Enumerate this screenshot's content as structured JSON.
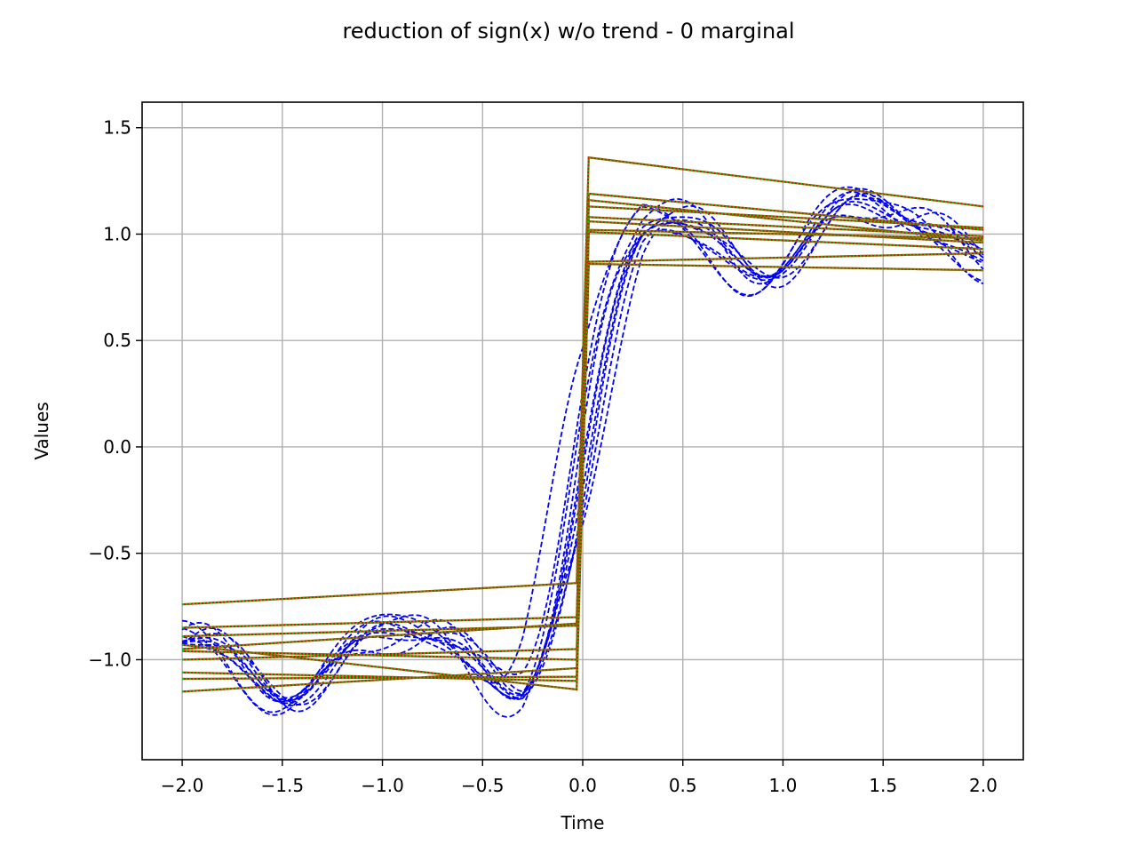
{
  "chart_data": {
    "type": "line",
    "title": "reduction of sign(x) w/o trend - 0 marginal",
    "xlabel": "Time",
    "ylabel": "Values",
    "xlim": [
      -2.2,
      2.2
    ],
    "ylim": [
      -1.47,
      1.62
    ],
    "xticks": [
      -2.0,
      -1.5,
      -1.0,
      -0.5,
      0.0,
      0.5,
      1.0,
      1.5,
      2.0
    ],
    "xtick_labels": [
      "−2.0",
      "−1.5",
      "−1.0",
      "−0.5",
      "0.0",
      "0.5",
      "1.0",
      "1.5",
      "2.0"
    ],
    "yticks": [
      -1.0,
      -0.5,
      0.0,
      0.5,
      1.0,
      1.5
    ],
    "ytick_labels": [
      "−1.0",
      "−0.5",
      "0.0",
      "0.5",
      "1.0",
      "1.5"
    ],
    "grid": true,
    "legend": "none",
    "colors": {
      "stochastic": "#0000ff",
      "reduced_base": "#ff0000",
      "reduced_overlay": "#00cc00",
      "grid": "#b0b0b0",
      "axes": "#000000"
    },
    "stochastic_series": [
      {
        "mid": 0.03,
        "k": 5.2,
        "a1": 0.18,
        "a2": 0.06,
        "p1": 0.0,
        "p2": 1.2
      },
      {
        "mid": 0.05,
        "k": 4.8,
        "a1": 0.22,
        "a2": 0.05,
        "p1": 0.3,
        "p2": 0.8
      },
      {
        "mid": -0.02,
        "k": 5.6,
        "a1": 0.2,
        "a2": 0.07,
        "p1": -0.2,
        "p2": 2.0
      },
      {
        "mid": 0.08,
        "k": 4.4,
        "a1": 0.25,
        "a2": 0.04,
        "p1": 0.15,
        "p2": 0.4
      },
      {
        "mid": 0.0,
        "k": 6.0,
        "a1": 0.15,
        "a2": 0.08,
        "p1": -0.35,
        "p2": 1.5
      },
      {
        "mid": 0.1,
        "k": 4.2,
        "a1": 0.28,
        "a2": 0.05,
        "p1": 0.25,
        "p2": 2.4
      },
      {
        "mid": -0.05,
        "k": 5.0,
        "a1": 0.21,
        "a2": 0.06,
        "p1": -0.1,
        "p2": 0.2
      },
      {
        "mid": 0.06,
        "k": 5.4,
        "a1": 0.19,
        "a2": 0.05,
        "p1": 0.05,
        "p2": 1.0
      },
      {
        "mid": -0.12,
        "k": 3.8,
        "a1": 0.3,
        "a2": 0.04,
        "p1": 0.4,
        "p2": 1.8
      },
      {
        "mid": 0.02,
        "k": 4.6,
        "a1": 0.23,
        "a2": 0.07,
        "p1": -0.25,
        "p2": 0.6
      }
    ],
    "reduced_series": [
      {
        "left": [
          -0.74,
          -0.64
        ],
        "right": [
          1.36,
          1.13
        ]
      },
      {
        "left": [
          -0.85,
          -0.8
        ],
        "right": [
          1.19,
          1.02
        ]
      },
      {
        "left": [
          -0.89,
          -0.84
        ],
        "right": [
          1.16,
          0.97
        ]
      },
      {
        "left": [
          -0.95,
          -0.83
        ],
        "right": [
          1.13,
          1.03
        ]
      },
      {
        "left": [
          -0.96,
          -1.0
        ],
        "right": [
          1.08,
          0.99
        ]
      },
      {
        "left": [
          -1.0,
          -0.95
        ],
        "right": [
          1.06,
          0.96
        ]
      },
      {
        "left": [
          -1.06,
          -1.1
        ],
        "right": [
          1.02,
          0.98
        ]
      },
      {
        "left": [
          -1.09,
          -1.08
        ],
        "right": [
          1.01,
          0.93
        ]
      },
      {
        "left": [
          -1.15,
          -1.04
        ],
        "right": [
          0.87,
          0.91
        ]
      },
      {
        "left": [
          -0.93,
          -1.14
        ],
        "right": [
          0.86,
          0.83
        ]
      }
    ]
  }
}
